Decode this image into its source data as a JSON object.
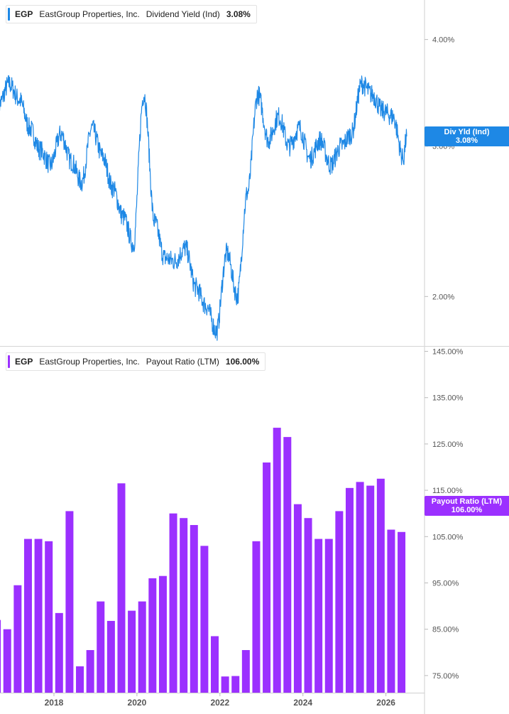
{
  "colors": {
    "yield": "#1e88e5",
    "payout": "#9b30ff",
    "grid": "#e8e8e8",
    "axis_text": "#555555"
  },
  "top_panel": {
    "legend": {
      "ticker": "EGP",
      "company": "EastGroup Properties, Inc.",
      "metric": "Dividend Yield (Ind)",
      "value": "3.08%"
    },
    "badge": {
      "label": "Div Yld (Ind)",
      "value": "3.08%"
    },
    "y_ticks": [
      "4.00%",
      "3.00%",
      "2.00%"
    ]
  },
  "bottom_panel": {
    "legend": {
      "ticker": "EGP",
      "company": "EastGroup Properties, Inc.",
      "metric": "Payout Ratio (LTM)",
      "value": "106.00%"
    },
    "badge": {
      "label": "Payout Ratio (LTM)",
      "value": "106.00%"
    },
    "y_ticks": [
      "145.00%",
      "135.00%",
      "125.00%",
      "115.00%",
      "105.00%",
      "95.00%",
      "85.00%",
      "75.00%"
    ]
  },
  "x_ticks": [
    "2018",
    "2020",
    "2022",
    "2024",
    "2026"
  ],
  "chart_data": [
    {
      "type": "line",
      "series_name": "Dividend Yield (Ind)",
      "scale": "log",
      "ylim": [
        1.75,
        4.45
      ],
      "x": [
        "2016-09",
        "2016-12",
        "2017-03",
        "2017-06",
        "2017-09",
        "2017-12",
        "2018-03",
        "2018-06",
        "2018-09",
        "2018-12",
        "2019-03",
        "2019-06",
        "2019-09",
        "2019-12",
        "2020-03",
        "2020-06",
        "2020-09",
        "2020-12",
        "2021-03",
        "2021-06",
        "2021-09",
        "2021-12",
        "2022-03",
        "2022-06",
        "2022-09",
        "2022-12",
        "2023-03",
        "2023-06",
        "2023-09",
        "2023-12",
        "2024-03",
        "2024-06",
        "2024-09",
        "2024-12",
        "2025-03",
        "2025-06",
        "2025-09",
        "2025-12",
        "2026-03",
        "2026-06",
        "2026-07"
      ],
      "y": [
        3.35,
        3.55,
        3.4,
        3.15,
        2.97,
        2.85,
        3.1,
        2.88,
        2.72,
        3.15,
        2.92,
        2.68,
        2.48,
        2.3,
        3.45,
        2.45,
        2.22,
        2.2,
        2.28,
        2.05,
        1.95,
        1.82,
        2.25,
        2.0,
        2.65,
        3.45,
        3.05,
        3.25,
        3.0,
        3.15,
        2.9,
        3.05,
        2.85,
        3.0,
        3.1,
        3.55,
        3.45,
        3.3,
        3.25,
        2.9,
        3.08
      ]
    },
    {
      "type": "bar",
      "series_name": "Payout Ratio (LTM)",
      "ylim": [
        71.3,
        146
      ],
      "x": [
        "2016-Q3",
        "2016-Q4",
        "2017-Q1",
        "2017-Q2",
        "2017-Q3",
        "2017-Q4",
        "2018-Q1",
        "2018-Q2",
        "2018-Q3",
        "2018-Q4",
        "2019-Q1",
        "2019-Q2",
        "2019-Q3",
        "2019-Q4",
        "2020-Q1",
        "2020-Q2",
        "2020-Q3",
        "2020-Q4",
        "2021-Q1",
        "2021-Q2",
        "2021-Q3",
        "2021-Q4",
        "2022-Q1",
        "2022-Q2",
        "2022-Q3",
        "2022-Q4",
        "2023-Q1",
        "2023-Q2",
        "2023-Q3",
        "2023-Q4",
        "2024-Q1",
        "2024-Q2",
        "2024-Q3",
        "2024-Q4",
        "2025-Q1",
        "2025-Q2",
        "2025-Q3",
        "2025-Q4",
        "2026-Q1",
        "2026-Q2"
      ],
      "values": [
        87.0,
        85.0,
        94.5,
        104.5,
        104.5,
        104.0,
        88.5,
        110.5,
        77.0,
        80.5,
        91.0,
        86.8,
        116.5,
        89.0,
        91.0,
        96.0,
        96.5,
        110.0,
        109.0,
        107.5,
        103.0,
        83.5,
        74.8,
        74.9,
        80.5,
        104.0,
        121.0,
        128.5,
        126.5,
        112.0,
        109.0,
        104.5,
        104.5,
        110.5,
        115.5,
        116.8,
        116.0,
        117.5,
        106.5,
        106.0
      ]
    }
  ]
}
